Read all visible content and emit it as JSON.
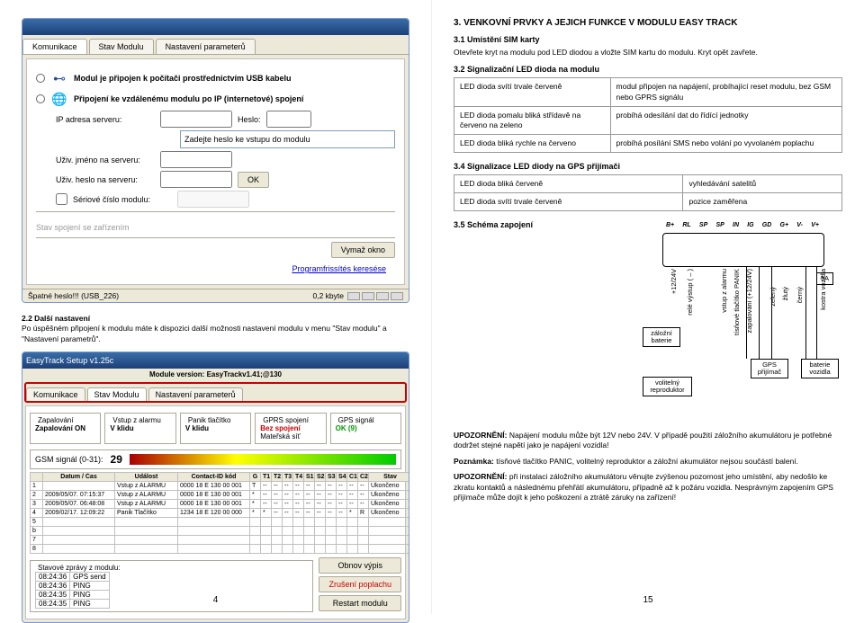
{
  "left": {
    "ss1": {
      "title": "",
      "tabs": [
        "Komunikace",
        "Stav Modulu",
        "Nastavení parameterů"
      ],
      "opt1_icon": "usb",
      "opt1": "Modul je připojen k počítači prostřednictvím USB kabelu",
      "opt2_icon": "globe",
      "opt2": "Připojení ke vzdálenému modulu po IP (internetové) spojení",
      "ip_label": "IP adresa serveru:",
      "pw_label": "Heslo:",
      "pw_hint": "Zadejte heslo ke vstupu do modulu",
      "user_label": "Uživ. jméno na serveru:",
      "userpw_label": "Uživ. heslo na serveru:",
      "serial_label": "Sériové číslo modulu:",
      "ok": "OK",
      "btn2": "Vymaž okno",
      "btn3": "Programfrissítés keresése",
      "status_l": "Špatné heslo!!! (USB_226)",
      "status_r": "0,2 kbyte"
    },
    "para_title": "2.2 Další nastavení",
    "para": "Po úspěšném připojení k modulu máte k dispozici další možnosti nastavení modulu v menu \"Stav modulu\" a \"Nastavení parametrů\".",
    "ss2": {
      "version": "Module version: EasyTrackv1.41;@130",
      "tabs": [
        "Komunikace",
        "Stav Modulu",
        "Nastavení parameterů"
      ],
      "fs_zap": "Zapalování",
      "fs_vstup": "Vstup z alarmu",
      "fs_panik": "Panik tlačítko",
      "fs_gprs": "GPRS spojení",
      "fs_gps": "GPS signál",
      "zap_on": "Zapalování ON",
      "vklidu": "V klidu",
      "bezspoj": "Bez spojení",
      "matersit": "Mateřská síť",
      "ok9": "OK (9)",
      "gsm_label": "GSM signál (0-31):",
      "gsm_val": "29",
      "cols": [
        "",
        "Datum / Čas",
        "Událost",
        "Contact-ID kód",
        "G",
        "T1",
        "T2",
        "T3",
        "T4",
        "S1",
        "S2",
        "S3",
        "S4",
        "C1",
        "C2",
        "Stav"
      ],
      "rows": [
        [
          "1",
          "",
          "Vstup z ALARMU",
          "0000 18 E 130 00 001",
          "T",
          "--",
          "--",
          "--",
          "--",
          "--",
          "--",
          "--",
          "--",
          "--",
          "--",
          "Ukončeno"
        ],
        [
          "2",
          "2009/05/07. 07:15:37",
          "Vstup z ALARMU",
          "0000 18 E 130 00 001",
          "*",
          "--",
          "--",
          "--",
          "--",
          "--",
          "--",
          "--",
          "--",
          "--",
          "--",
          "Ukončeno"
        ],
        [
          "3",
          "2009/05/07. 06:48:08",
          "Vstup z ALARMU",
          "0000 18 E 130 00 001",
          "*",
          "--",
          "--",
          "--",
          "--",
          "--",
          "--",
          "--",
          "--",
          "--",
          "--",
          "Ukončeno"
        ],
        [
          "4",
          "2009/02/17. 12:09:22",
          "Panik Tlačítko",
          "1234 18 E 120 00 000",
          "*",
          "*",
          "--",
          "--",
          "--",
          "--",
          "--",
          "--",
          "--",
          "*",
          "R",
          "Ukončeno"
        ],
        [
          "5",
          "",
          "",
          "",
          "",
          "",
          "",
          "",
          "",
          "",
          "",
          "",
          "",
          "",
          "",
          ""
        ],
        [
          "b",
          "",
          "",
          "",
          "",
          "",
          "",
          "",
          "",
          "",
          "",
          "",
          "",
          "",
          "",
          ""
        ],
        [
          "7",
          "",
          "",
          "",
          "",
          "",
          "",
          "",
          "",
          "",
          "",
          "",
          "",
          "",
          "",
          ""
        ],
        [
          "8",
          "",
          "",
          "",
          "",
          "",
          "",
          "",
          "",
          "",
          "",
          "",
          "",
          "",
          "",
          ""
        ]
      ],
      "stav_title": "Stavové zprávy z modulu:",
      "stav_rows": [
        [
          "08:24:36",
          "GPS send"
        ],
        [
          "08:24:36",
          "PING"
        ],
        [
          "08:24:35",
          "PING"
        ],
        [
          "08:24:35",
          "PING"
        ]
      ],
      "btn_obnov": "Obnov výpis",
      "btn_zrus": "Zrušení poplachu",
      "btn_restart": "Restart modulu"
    },
    "page_num": "4"
  },
  "right": {
    "h3": "3. VENKOVNÍ PRVKY A JEJICH FUNKCE V MODULU EASY TRACK",
    "h31": "3.1 Umístění SIM karty",
    "p31": "Otevřete kryt na modulu pod LED diodou a vložte SIM kartu do modulu. Kryt opět zavřete.",
    "h32": "3.2 Signalizační LED dioda na modulu",
    "t32": [
      [
        "LED dioda svítí trvale červeně",
        "modul připojen na napájení, probíhající reset modulu, bez GSM nebo GPRS signálu"
      ],
      [
        "LED dioda pomalu bliká střídavě na červeno na zeleno",
        "probíhá odesílání dat do řídící jednotky"
      ],
      [
        "LED dioda bliká rychle na červeno",
        "probíhá posílání SMS nebo volání po vyvolaném poplachu"
      ]
    ],
    "h34": "3.4 Signalizace LED diody na GPS přijímači",
    "t34": [
      [
        "LED dioda bliká červeně",
        "vyhledávání satelitů"
      ],
      [
        "LED dioda svítí trvale červeně",
        "pozice zaměřena"
      ]
    ],
    "h35": "3.5 Schéma zapojení",
    "pins": [
      "B+",
      "RL",
      "SP",
      "SP",
      "IN",
      "IG",
      "GD",
      "G+",
      "V-",
      "V+"
    ],
    "diag": {
      "zalozni": "záložní\nbaterie",
      "volitelny": "volitelný\nreproduktor",
      "gps": "GPS\npřijímač",
      "baterie": "baterie\nvozidla",
      "val5a": "5A",
      "v1224": "+12/24V",
      "rele": "relé výstup ( – )",
      "vstup": "vstup z alarmu",
      "panik": "tísňové tlačítko PANIK",
      "zap": "zapalování (+12/24V)",
      "zeleny": "zelený",
      "zluty": "žlutý",
      "cerny": "černý",
      "kostra": "kostra vozidla"
    },
    "warn1_b": "UPOZORNĚNÍ:",
    "warn1": " Napájení modulu může být 12V nebo 24V. V případě použití záložního akumulátoru je potřebné dodržet stejné napětí jako je napájení vozidla!",
    "note_b": "Poznámka:",
    "note": " tísňové tlačítko PANIC, volitelný reproduktor a záložní akumulátor nejsou součástí balení.",
    "warn2_b": "UPOZORNĚNÍ:",
    "warn2": " při instalaci záložního akumulátoru věnujte zvýšenou pozornost jeho umístění, aby nedošlo ke zkratu kontaktů a následnému přehřátí akumulátoru, případně až k požáru vozidla. Nesprávným zapojením GPS přijímače může dojít k jeho poškození a ztrátě záruky na zařízení!",
    "page_num": "15"
  }
}
